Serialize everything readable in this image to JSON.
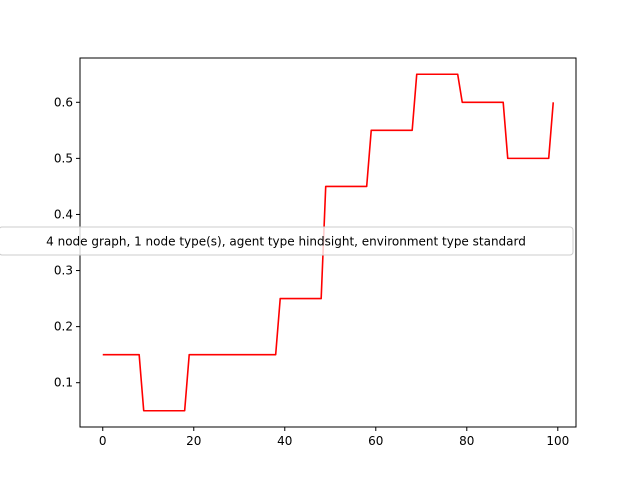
{
  "chart_data": {
    "type": "line",
    "title": "",
    "xlabel": "",
    "ylabel": "",
    "xlim": [
      -5,
      104
    ],
    "ylim": [
      0.021,
      0.679
    ],
    "x_ticks": [
      0,
      20,
      40,
      60,
      80,
      100
    ],
    "y_ticks": [
      0.1,
      0.2,
      0.3,
      0.4,
      0.5,
      0.6
    ],
    "x_tick_labels": [
      "0",
      "20",
      "40",
      "60",
      "80",
      "100"
    ],
    "y_tick_labels": [
      "0.1",
      "0.2",
      "0.3",
      "0.4",
      "0.5",
      "0.6"
    ],
    "grid": false,
    "legend_position": "center-left",
    "series": [
      {
        "name": "4 node graph, 1 node type(s), agent type hindsight, environment type standard",
        "color": "#ff0000",
        "x": [
          0,
          8,
          9,
          18,
          19,
          38,
          39,
          48,
          49,
          58,
          59,
          68,
          69,
          78,
          79,
          88,
          89,
          98,
          99
        ],
        "values": [
          0.15,
          0.15,
          0.05,
          0.05,
          0.15,
          0.15,
          0.25,
          0.25,
          0.45,
          0.45,
          0.55,
          0.55,
          0.65,
          0.65,
          0.6,
          0.6,
          0.5,
          0.5,
          0.6
        ]
      }
    ]
  }
}
